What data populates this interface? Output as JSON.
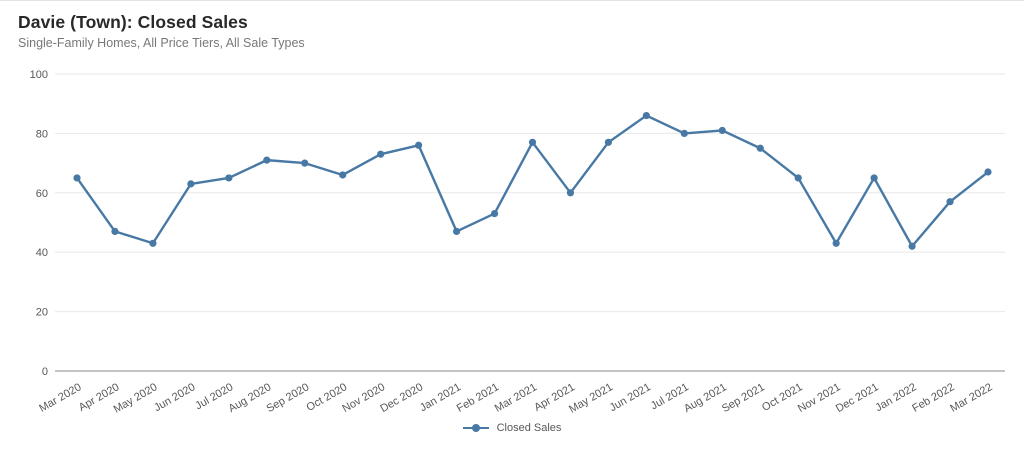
{
  "header": {
    "title": "Davie (Town): Closed Sales",
    "subtitle": "Single-Family Homes, All Price Tiers, All Sale Types"
  },
  "legend": {
    "label": "Closed Sales"
  },
  "chart_data": {
    "type": "line",
    "title": "Davie (Town): Closed Sales",
    "subtitle": "Single-Family Homes, All Price Tiers, All Sale Types",
    "categories": [
      "Mar 2020",
      "Apr 2020",
      "May 2020",
      "Jun 2020",
      "Jul 2020",
      "Aug 2020",
      "Sep 2020",
      "Oct 2020",
      "Nov 2020",
      "Dec 2020",
      "Jan 2021",
      "Feb 2021",
      "Mar 2021",
      "Apr 2021",
      "May 2021",
      "Jun 2021",
      "Jul 2021",
      "Aug 2021",
      "Sep 2021",
      "Oct 2021",
      "Nov 2021",
      "Dec 2021",
      "Jan 2022",
      "Feb 2022",
      "Mar 2022"
    ],
    "series": [
      {
        "name": "Closed Sales",
        "color": "#4878a4",
        "values": [
          65,
          47,
          43,
          63,
          65,
          71,
          70,
          66,
          73,
          76,
          47,
          53,
          77,
          60,
          77,
          86,
          80,
          81,
          75,
          65,
          43,
          65,
          42,
          57,
          67
        ]
      }
    ],
    "xlabel": "",
    "ylabel": "",
    "ylim": [
      0,
      100
    ],
    "yticks": [
      0,
      20,
      40,
      60,
      80,
      100
    ],
    "grid": true,
    "legend_position": "bottom",
    "x_label_rotation": -30,
    "grid_color": "#e8e8e8",
    "axis_color": "#8a8a8a",
    "tick_label_color": "#585858"
  }
}
